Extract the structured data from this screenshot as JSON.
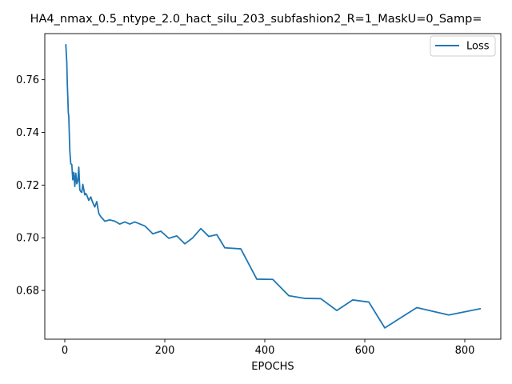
{
  "chart_data": {
    "type": "line",
    "title": "HA4_nmax_0.5_ntype_2.0_hact_silu_203_subfashion2_R=1_MaskU=0_Samp=",
    "xlabel": "EPOCHS",
    "ylabel": "",
    "xlim": [
      -40,
      872
    ],
    "ylim": [
      0.6615,
      0.7775
    ],
    "xticks": [
      0,
      200,
      400,
      600,
      800
    ],
    "xtick_labels": [
      "0",
      "200",
      "400",
      "600",
      "800"
    ],
    "yticks": [
      0.68,
      0.7,
      0.72,
      0.74,
      0.76
    ],
    "ytick_labels": [
      "0.68",
      "0.70",
      "0.72",
      "0.74",
      "0.76"
    ],
    "grid": false,
    "legend_position": "top-right",
    "series": [
      {
        "name": "Loss",
        "color": "#1f77b4",
        "x": [
          2,
          4,
          5,
          6,
          7,
          8,
          10,
          12,
          14,
          16,
          18,
          20,
          22,
          24,
          26,
          28,
          30,
          32,
          34,
          36,
          40,
          42,
          44,
          48,
          52,
          56,
          60,
          64,
          68,
          72,
          80,
          90,
          100,
          110,
          120,
          130,
          140,
          160,
          176,
          192,
          208,
          224,
          240,
          256,
          272,
          288,
          304,
          320,
          352,
          384,
          416,
          448,
          480,
          512,
          544,
          576,
          608,
          640,
          704,
          768,
          832
        ],
        "y": [
          0.7735,
          0.7665,
          0.7585,
          0.7535,
          0.7475,
          0.746,
          0.733,
          0.728,
          0.7278,
          0.722,
          0.7248,
          0.7195,
          0.7245,
          0.7205,
          0.7215,
          0.7268,
          0.7182,
          0.7175,
          0.7172,
          0.7203,
          0.7163,
          0.7168,
          0.7162,
          0.7142,
          0.7155,
          0.7133,
          0.7117,
          0.7137,
          0.7092,
          0.708,
          0.7063,
          0.7068,
          0.7063,
          0.7052,
          0.706,
          0.7052,
          0.706,
          0.7045,
          0.7015,
          0.7025,
          0.6998,
          0.7007,
          0.6977,
          0.7,
          0.7035,
          0.7005,
          0.7012,
          0.6962,
          0.6958,
          0.6843,
          0.6842,
          0.678,
          0.677,
          0.6769,
          0.6724,
          0.6764,
          0.6756,
          0.6658,
          0.6735,
          0.6707,
          0.6731
        ]
      }
    ]
  }
}
